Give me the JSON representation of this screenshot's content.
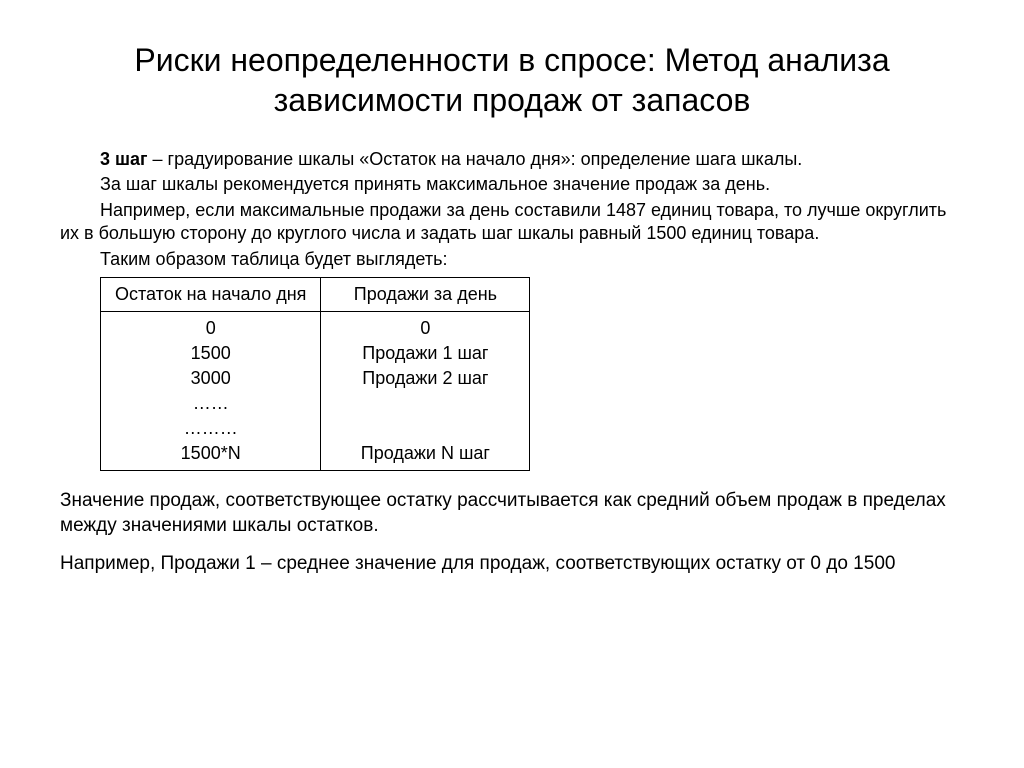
{
  "title": "Риски неопределенности в спросе: Метод анализа зависимости продаж от запасов",
  "body": {
    "step_label": "3 шаг",
    "step_tail": " – градуирование шкалы «Остаток на начало дня»: определение шага шкалы.",
    "p2": "За шаг шкалы рекомендуется принять максимальное значение продаж за день.",
    "p3": "Например, если максимальные продажи за день составили 1487 единиц товара, то лучше округлить их в большую сторону до круглого числа и задать шаг шкалы равный 1500 единиц товара.",
    "p4": "Таким образом таблица будет выглядеть:"
  },
  "table": {
    "col1_header": "Остаток на начало дня",
    "col2_header": "Продажи за день",
    "rows": [
      {
        "c1": "0",
        "c2": "0"
      },
      {
        "c1": "1500",
        "c2": "Продажи 1 шаг"
      },
      {
        "c1": "3000",
        "c2": "Продажи 2 шаг"
      },
      {
        "c1": "……",
        "c2": ""
      },
      {
        "c1": "………",
        "c2": ""
      },
      {
        "c1": "1500*N",
        "c2": "Продажи N шаг"
      }
    ]
  },
  "footer": {
    "f1": "Значение продаж, соответствующее остатку рассчитывается как средний объем продаж в пределах между значениями шкалы остатков.",
    "f2": "Например, Продажи 1 – среднее значение для продаж, соответствующих остатку от 0 до 1500"
  },
  "style": {
    "background": "#ffffff",
    "text_color": "#000000",
    "title_fontsize": 32,
    "body_fontsize": 18,
    "footer_fontsize": 19,
    "table_border_color": "#000000"
  }
}
